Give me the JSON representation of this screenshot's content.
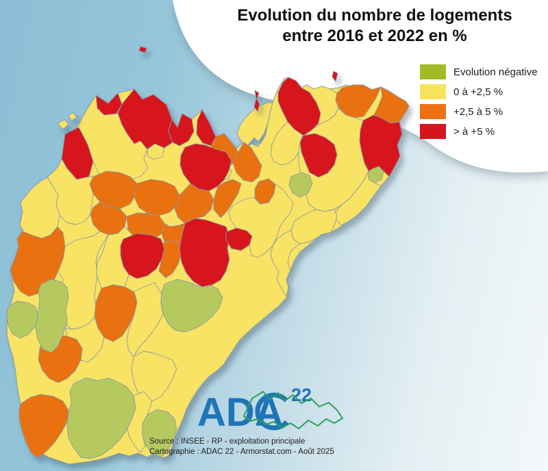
{
  "title": {
    "line1": "Evolution du nombre de logements",
    "line2": "entre 2016 et 2022 en %"
  },
  "legend": {
    "items": [
      {
        "label": "Evolution négative",
        "color": "#a4ba27"
      },
      {
        "label": "0 à +2,5 %",
        "color": "#f7e25c"
      },
      {
        "label": "+2,5 à 5 %",
        "color": "#ed7013"
      },
      {
        "label": "> à +5 %",
        "color": "#d6141d"
      }
    ]
  },
  "source": {
    "line1": "Source : INSEE - RP - exploitation principale",
    "line2": "Cartographie : ADAC 22 - Armorstat.com - Août 2025"
  },
  "logo": {
    "text": "ADA",
    "number": "22",
    "blue": "#2074b8",
    "green": "#2aa05c"
  },
  "map": {
    "stroke": "#8a99a6",
    "map_colors": [
      "#b5c95f",
      "#f9e364",
      "#e97110",
      "#d6151d"
    ],
    "base": "90,232 97,196 112,186 127,160 140,139 158,151 172,136 196,130 208,145 224,138 243,153 251,174 259,186 266,166 280,174 295,160 306,180 315,200 327,195 338,208 345,218 352,210 360,214 368,210 376,214 383,206 388,196 391,180 394,165 398,150 403,136 409,124 415,115 421,113 432,118 440,128 448,124 458,130 470,126 482,130 495,128 505,124 518,128 530,124 543,131 556,127 568,133 580,141 592,148 597,155 591,166 583,178 587,196 580,212 584,228 576,244 568,258 556,272 544,288 534,302 522,314 508,324 496,332 482,340 470,342 458,352 448,360 438,368 430,380 424,395 418,408 422,420 419,434 408,446 396,456 384,466 372,476 360,487 349,498 341,510 333,522 327,532 316,542 305,550 296,560 287,572 279,585 272,598 267,612 261,626 255,640 251,654 246,666 237,669 225,662 215,668 202,662 188,666 174,662 160,667 146,671 131,674 116,676 101,678 86,673 71,668 58,660 48,648 42,634 37,618 33,602 29,586 26,570 24,554 22,538 19,522 14,506 10,488 10,470 13,454 17,440 21,425 18,410 15,394 22,376 27,360 25,348 33,338 29,324 33,310 30,296 39,284 49,273 59,265 69,259 78,251 85,243",
    "regions": [
      {
        "c": 1,
        "p": "112,186 127,160 140,139 152,168 172,166 178,182 186,196 196,210 205,206 215,218 210,232 216,246 205,258 188,263 172,259 158,263 146,258 136,236 128,211 114,187"
      },
      {
        "c": 1,
        "p": "215,218 226,210 240,216 237,229 224,233 216,228"
      },
      {
        "c": 1,
        "p": "85,243 90,232 98,246 112,262 130,258 136,258 131,269 136,283 132,313 124,323 111,328 97,325 87,314 82,300 85,285 77,272 69,259 78,251"
      },
      {
        "c": 1,
        "p": "69,259 77,272 85,285 82,300 87,314 84,331 74,343 61,348 49,345 35,340 29,328 33,310 30,296 39,284 49,273 59,265"
      },
      {
        "c": 1,
        "p": "352,206 362,212 371,201 377,207 385,196 391,180 394,165 398,150 390,150 379,155 368,162 358,172 350,184 346,196"
      },
      {
        "c": 1,
        "p": "432,118 440,128 448,124 458,130 470,126 482,130 492,136 490,146 494,158 489,168 479,176 467,181 455,190 448,186 452,170 448,155 440,140"
      },
      {
        "c": 1,
        "p": "455,190 467,181 479,176 489,168 494,158 505,168 518,172 530,176 526,190 525,206 528,222 532,238 538,250 532,262 522,276 511,289 499,299 487,306 474,309 461,306 451,298 447,284 443,268 438,252 436,236 436,220 438,206 443,198"
      },
      {
        "c": 1,
        "p": "538,250 532,262 522,276 511,289 499,299 492,306 488,318 498,329 508,324 522,314 534,302 544,288 556,272 545,266 538,258"
      },
      {
        "c": 1,
        "p": "488,306 474,309 461,306 452,310 440,316 430,323 425,336 428,349 438,356 452,353 462,348 470,342 482,340 488,330 492,315"
      },
      {
        "c": 1,
        "p": "428,349 425,336 415,341 405,349 398,359 395,373 400,386 407,396 404,409 411,421 418,433 421,420 418,408 424,395 420,382 424,368 432,360 438,356"
      },
      {
        "c": 1,
        "p": "340,300 355,292 370,288 380,298 392,296 400,283 402,269 412,276 420,286 428,296 425,309 417,319 409,331 404,346 398,359 388,369 377,376 367,373 364,358 368,345 360,337 345,333 337,322 334,310"
      },
      {
        "c": 1,
        "p": "420,178 430,189 442,196 438,208 436,222 430,232 420,239 410,241 400,236 395,225 397,211 404,196 412,186"
      },
      {
        "c": 1,
        "p": "95,360 108,352 122,348 136,345 146,338 158,343 150,356 143,369 140,383 142,399 140,416 138,433 140,449 138,463 129,473 117,479 104,481 95,472 90,458 92,440 88,425 92,408 85,396 92,378"
      },
      {
        "c": 1,
        "p": "158,343 172,341 182,331 187,336 196,346 188,356 180,349 176,359 176,373 180,389 188,401 182,419 165,416 148,421 143,408 141,398 142,383 150,368"
      },
      {
        "c": 1,
        "p": "200,441 196,426 210,419 226,413 236,429 235,443 238,459 232,471 224,483 214,496 204,506 195,521 188,512 185,498 188,482 196,459"
      },
      {
        "c": 1,
        "p": "120,509 112,496 98,491 96,479 104,481 117,479 129,473 138,463 143,479 152,493 148,509 138,521 128,529 118,526"
      },
      {
        "c": 1,
        "p": "195,521 210,513 225,516 240,521 252,526 258,539 252,553 245,566 235,579 222,586 210,581 200,571 195,556 192,539"
      },
      {
        "c": 1,
        "p": "195,578 210,572 222,586 215,606 208,619 208,636 212,651 205,661 195,649 188,636 185,621 192,613 198,596"
      },
      {
        "c": 1,
        "p": "318,246 330,243 338,249 334,261 322,263 314,256"
      },
      {
        "c": 2,
        "p": "500,128 515,124 530,124 543,131 556,127 549,143 540,157 531,170 518,172 505,168 495,158 490,146 492,136"
      },
      {
        "c": 2,
        "p": "556,127 568,133 580,141 592,148 597,155 591,166 583,178 570,180 558,173 546,168 552,156 558,141"
      },
      {
        "c": 2,
        "p": "315,200 327,195 338,208 348,222 342,238 330,244 318,243 310,229 308,213"
      },
      {
        "c": 2,
        "p": "136,258 155,250 175,252 190,258 200,268 198,285 190,298 175,305 158,302 146,295 136,283 131,269"
      },
      {
        "c": 2,
        "p": "200,268 220,262 240,265 255,272 262,285 258,300 248,310 232,315 216,312 203,303 196,288"
      },
      {
        "c": 2,
        "p": "262,285 278,268 290,276 305,279 312,291 308,306 298,316 285,319 270,326 260,318 255,305 258,300"
      },
      {
        "c": 2,
        "p": "146,295 158,302 175,305 185,316 182,331 172,341 158,343 146,338 136,328 132,313 136,303"
      },
      {
        "c": 2,
        "p": "185,316 200,311 216,312 232,315 240,326 236,341 225,349 210,351 196,346 187,336"
      },
      {
        "c": 2,
        "p": "240,326 248,331 262,329 270,326 265,346 262,363 250,361 240,353 236,341"
      },
      {
        "c": 2,
        "p": "348,222 356,208 366,215 374,228 382,242 378,258 368,266 355,263 345,252 340,238"
      },
      {
        "c": 2,
        "p": "378,265 392,261 402,269 400,283 392,296 380,298 372,289 372,276"
      },
      {
        "c": 2,
        "p": "312,292 318,272 330,265 340,262 352,268 348,282 340,295 332,308 322,318 312,306"
      },
      {
        "c": 2,
        "p": "15,394 22,376 27,360 25,348 33,338 48,344 61,348 74,343 84,331 92,340 95,360 92,378 85,396 78,411 68,421 55,429 42,433 30,426 20,411"
      },
      {
        "c": 2,
        "p": "235,356 250,351 262,356 265,371 260,386 252,399 242,406 232,396 236,379 240,363"
      },
      {
        "c": 2,
        "p": "148,421 165,416 182,419 195,426 200,441 196,459 188,476 178,491 165,499 152,493 143,479 138,461 140,441"
      },
      {
        "c": 2,
        "p": "65,496 82,489 98,491 112,496 120,509 118,526 110,541 98,553 85,559 72,553 62,541 56,526 58,509"
      },
      {
        "c": 2,
        "p": "30,590 45,580 60,576 78,579 92,586 100,599 98,616 90,631 80,646 68,659 55,669 45,661 38,646 32,629 28,611 28,598"
      },
      {
        "c": 0,
        "p": "240,415 258,408 275,412 290,418 305,415 318,422 325,435 320,450 310,462 298,472 285,480 270,485 255,482 245,472 238,458 235,442 236,428"
      },
      {
        "c": 0,
        "p": "12,448 25,440 40,442 52,448 56,462 52,476 42,488 30,494 18,488 11,472 10,458"
      },
      {
        "c": 0,
        "p": "60,415 75,408 90,412 98,420 100,435 96,452 98,470 92,488 85,505 75,515 62,510 55,495 52,478 55,460 58,440 56,425"
      },
      {
        "c": 0,
        "p": "108,560 125,552 142,556 158,552 172,558 185,565 195,578 198,596 192,613 185,628 175,642 162,655 148,665 132,670 118,668 108,655 100,640 98,622 100,605 104,588 102,572"
      },
      {
        "c": 0,
        "p": "215,606 230,598 245,602 255,612 258,628 252,645 245,658 235,668 222,662 212,650 208,636 208,619"
      },
      {
        "c": 0,
        "p": "425,258 440,252 452,256 456,268 450,282 438,288 427,282 422,270"
      },
      {
        "c": 0,
        "p": "538,250 545,246 553,243 560,250 557,262 547,267 538,262"
      },
      {
        "c": 3,
        "p": "95,196 115,186 128,211 136,236 130,258 112,262 98,246 90,232"
      },
      {
        "c": 3,
        "p": "140,139 158,151 172,136 178,152 170,166 152,168 142,158"
      },
      {
        "c": 3,
        "p": "178,152 196,130 208,145 224,138 243,153 251,174 246,192 252,208 240,216 226,210 215,218 205,206 196,210 186,196 178,182 172,165"
      },
      {
        "c": 3,
        "p": "251,174 259,186 266,166 280,174 283,192 275,206 262,213 252,208 246,192"
      },
      {
        "c": 3,
        "p": "288,176 295,160 306,180 315,200 308,213 296,209 287,196"
      },
      {
        "c": 3,
        "p": "270,215 285,210 300,212 315,218 330,222 338,235 334,250 327,263 318,272 305,279 290,276 278,268 268,255 263,241 264,227"
      },
      {
        "c": 3,
        "p": "406,135 413,120 421,113 432,118 440,128 452,135 462,150 468,165 465,180 455,190 443,198 430,189 420,178 412,162 406,148"
      },
      {
        "c": 3,
        "p": "530,176 545,168 558,173 570,180 583,178 587,196 580,212 584,228 576,244 568,258 560,250 553,243 545,246 538,250 532,238 528,222 525,206 526,190"
      },
      {
        "c": 3,
        "p": "443,198 460,195 475,201 488,211 492,226 488,241 478,253 465,259 452,252 446,238 440,222 438,208"
      },
      {
        "c": 3,
        "p": "265,346 270,326 285,319 300,321 315,326 330,331 335,346 332,363 335,379 330,396 322,409 310,416 295,419 282,411 272,399 265,383 262,363"
      },
      {
        "c": 3,
        "p": "330,339 345,333 360,337 368,345 364,358 352,366 338,363 330,351"
      },
      {
        "c": 3,
        "p": "180,349 200,341 220,343 235,349 240,363 236,379 228,393 215,403 200,407 188,401 180,389 176,373 176,359"
      }
    ],
    "islands": [
      {
        "c": 1,
        "p": "84,180 95,175 100,182 92,189"
      },
      {
        "c": 1,
        "p": "100,168 108,165 112,172 104,176"
      },
      {
        "c": 3,
        "p": "205,68 214,70 212,77 203,74"
      },
      {
        "c": 3,
        "p": "372,132 378,136 375,145 379,152 376,163 371,156 374,144"
      },
      {
        "c": 3,
        "p": "487,104 493,107 490,119 485,112"
      }
    ]
  }
}
